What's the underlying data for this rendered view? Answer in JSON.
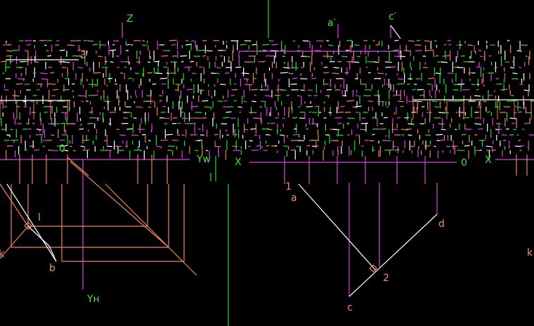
{
  "colors": {
    "background": "#000000",
    "magenta": "#e040e0",
    "green": "#20e020",
    "orange": "#f08060",
    "white": "#ffffff",
    "label_green": "#40e040",
    "label_orange": "#f09070"
  },
  "labels": {
    "z": "Z",
    "a_prime": "a′",
    "c_prime": "c′",
    "three_prime": "3′",
    "yw": "Yw",
    "yh": "Yн",
    "x_mid": "X",
    "x_right": "X",
    "o_left": "0",
    "o_right": "0",
    "point_1": "1",
    "point_2": "2",
    "point_a": "a",
    "point_b": "b",
    "point_c": "c",
    "point_d": "d",
    "point_l": "l",
    "point_k_left": "k",
    "point_k_right": "k"
  }
}
